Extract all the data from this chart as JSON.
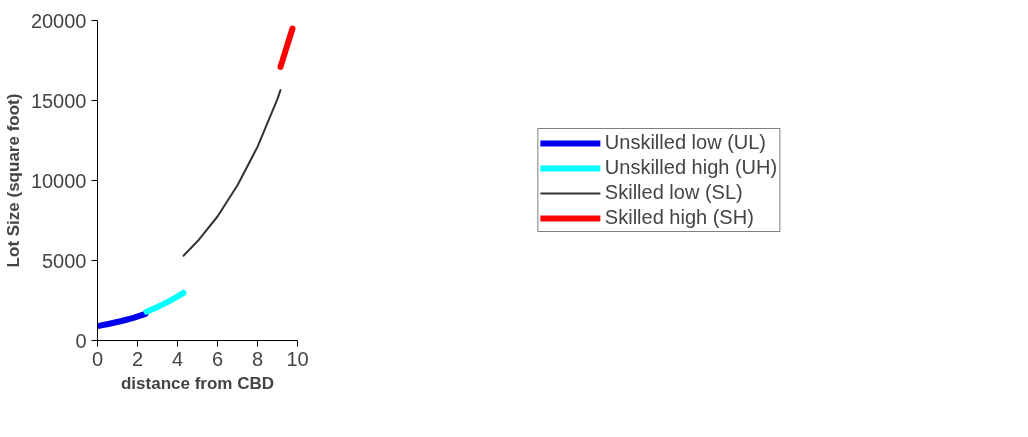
{
  "chart_data": {
    "type": "line",
    "xlabel": "distance from CBD",
    "ylabel": "Lot Size (square foot)",
    "xlim": [
      0,
      10
    ],
    "xticks": [
      0,
      2,
      4,
      6,
      8,
      10
    ],
    "ylim": [
      0,
      20000
    ],
    "yticks": [
      0,
      5000,
      10000,
      15000,
      20000
    ],
    "grid": false,
    "legend": "right",
    "marker": "none",
    "line_style": "solid",
    "series": [
      {
        "name": "Unskilled low (UL)",
        "color": "#0000ee",
        "x": [
          0,
          0.6,
          1.2,
          1.8,
          2.4
        ],
        "values": [
          900,
          1050,
          1220,
          1420,
          1660
        ]
      },
      {
        "name": "Unskilled high (UH)",
        "color": "#00ffff",
        "x": [
          2.45,
          3.0,
          3.5,
          4.0,
          4.3
        ],
        "values": [
          1800,
          2100,
          2400,
          2750,
          2980
        ]
      },
      {
        "name": "Skilled low (SL)",
        "color": "#333333",
        "x": [
          4.3,
          5,
          6,
          7,
          8,
          9,
          9.15
        ],
        "values": [
          5300,
          6200,
          7750,
          9700,
          12100,
          15100,
          15650
        ]
      },
      {
        "name": "Skilled high (SH)",
        "color": "#ff0000",
        "x": [
          9.15,
          9.45,
          9.75
        ],
        "values": [
          17100,
          18300,
          19500
        ]
      }
    ]
  }
}
